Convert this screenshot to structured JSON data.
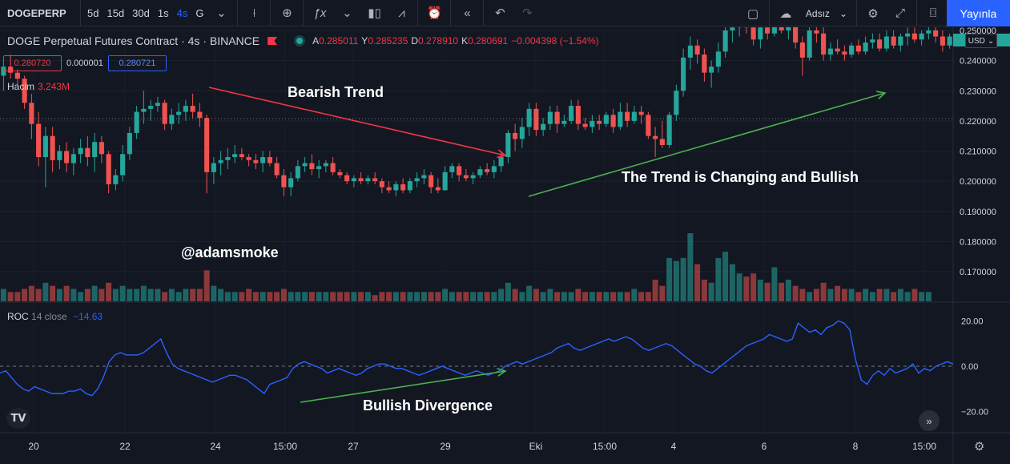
{
  "toolbar": {
    "symbol": "DOGEPERP",
    "intervals": [
      "5d",
      "15d",
      "30d",
      "1s",
      "4s",
      "G"
    ],
    "active_interval": "4s",
    "user": "Adsız",
    "publish_label": "Yayınla"
  },
  "legend": {
    "title": "DOGE Perpetual Futures Contract · 4s · BINANCE",
    "ohlc": [
      {
        "k": "A",
        "v": "0.285011"
      },
      {
        "k": "Y",
        "v": "0.285235"
      },
      {
        "k": "D",
        "v": "0.278910"
      },
      {
        "k": "K",
        "v": "0.280691"
      }
    ],
    "change": "−0.004398 (−1.54%)",
    "bid": "0.280720",
    "spread": "0.000001",
    "ask": "0.280721"
  },
  "volume_legend": {
    "label": "Hacim",
    "value": "3.243M"
  },
  "roc_legend": {
    "label": "ROC",
    "params": "14 close",
    "value": "−14.63"
  },
  "currency_label": "USD",
  "annotations": {
    "bearish": "Bearish Trend",
    "changing": "The Trend is Changing and Bullish",
    "author": "@adamsmoke",
    "divergence": "Bullish Divergence"
  },
  "colors": {
    "up": "#26a69a",
    "down": "#ef5350",
    "roc": "#2962ff",
    "arrow_red": "#f23645",
    "arrow_green": "#4caf50",
    "bg": "#131722"
  },
  "chart_data": {
    "type": "candlestick",
    "price_axis": {
      "ticks": [
        "0.250000",
        "0.240000",
        "0.230000",
        "0.220000",
        "0.210000",
        "0.200000",
        "0.190000",
        "0.180000",
        "0.170000"
      ],
      "range": [
        0.165,
        0.253
      ]
    },
    "roc_axis": {
      "ticks": [
        "20.00",
        "0.00",
        "−20.00"
      ],
      "range": [
        -27,
        25
      ]
    },
    "time_labels": [
      "20",
      "22",
      "24",
      "15:00",
      "27",
      "29",
      "Eki",
      "15:00",
      "4",
      "6",
      "8",
      "15:00"
    ],
    "candles": [
      {
        "o": 0.235,
        "h": 0.24,
        "l": 0.23,
        "c": 0.238
      },
      {
        "o": 0.238,
        "h": 0.242,
        "l": 0.234,
        "c": 0.236
      },
      {
        "o": 0.236,
        "h": 0.237,
        "l": 0.232,
        "c": 0.234
      },
      {
        "o": 0.234,
        "h": 0.235,
        "l": 0.224,
        "c": 0.226
      },
      {
        "o": 0.226,
        "h": 0.229,
        "l": 0.214,
        "c": 0.219
      },
      {
        "o": 0.219,
        "h": 0.223,
        "l": 0.205,
        "c": 0.208
      },
      {
        "o": 0.208,
        "h": 0.218,
        "l": 0.198,
        "c": 0.215
      },
      {
        "o": 0.215,
        "h": 0.218,
        "l": 0.203,
        "c": 0.207
      },
      {
        "o": 0.207,
        "h": 0.212,
        "l": 0.204,
        "c": 0.21
      },
      {
        "o": 0.21,
        "h": 0.213,
        "l": 0.203,
        "c": 0.206
      },
      {
        "o": 0.206,
        "h": 0.211,
        "l": 0.202,
        "c": 0.209
      },
      {
        "o": 0.209,
        "h": 0.214,
        "l": 0.206,
        "c": 0.211
      },
      {
        "o": 0.211,
        "h": 0.215,
        "l": 0.205,
        "c": 0.208
      },
      {
        "o": 0.208,
        "h": 0.216,
        "l": 0.203,
        "c": 0.213
      },
      {
        "o": 0.213,
        "h": 0.215,
        "l": 0.206,
        "c": 0.209
      },
      {
        "o": 0.209,
        "h": 0.21,
        "l": 0.196,
        "c": 0.199
      },
      {
        "o": 0.199,
        "h": 0.204,
        "l": 0.197,
        "c": 0.202
      },
      {
        "o": 0.202,
        "h": 0.212,
        "l": 0.2,
        "c": 0.209
      },
      {
        "o": 0.209,
        "h": 0.218,
        "l": 0.207,
        "c": 0.216
      },
      {
        "o": 0.216,
        "h": 0.225,
        "l": 0.214,
        "c": 0.223
      },
      {
        "o": 0.223,
        "h": 0.23,
        "l": 0.219,
        "c": 0.224
      },
      {
        "o": 0.224,
        "h": 0.227,
        "l": 0.22,
        "c": 0.225
      },
      {
        "o": 0.225,
        "h": 0.228,
        "l": 0.223,
        "c": 0.226
      },
      {
        "o": 0.226,
        "h": 0.227,
        "l": 0.217,
        "c": 0.219
      },
      {
        "o": 0.219,
        "h": 0.224,
        "l": 0.217,
        "c": 0.222
      },
      {
        "o": 0.222,
        "h": 0.226,
        "l": 0.219,
        "c": 0.223
      },
      {
        "o": 0.223,
        "h": 0.227,
        "l": 0.22,
        "c": 0.225
      },
      {
        "o": 0.225,
        "h": 0.229,
        "l": 0.221,
        "c": 0.223
      },
      {
        "o": 0.223,
        "h": 0.226,
        "l": 0.218,
        "c": 0.221
      },
      {
        "o": 0.221,
        "h": 0.222,
        "l": 0.196,
        "c": 0.203
      },
      {
        "o": 0.203,
        "h": 0.208,
        "l": 0.199,
        "c": 0.206
      },
      {
        "o": 0.206,
        "h": 0.21,
        "l": 0.202,
        "c": 0.207
      },
      {
        "o": 0.207,
        "h": 0.211,
        "l": 0.204,
        "c": 0.208
      },
      {
        "o": 0.208,
        "h": 0.212,
        "l": 0.206,
        "c": 0.209
      },
      {
        "o": 0.209,
        "h": 0.211,
        "l": 0.207,
        "c": 0.208
      },
      {
        "o": 0.208,
        "h": 0.209,
        "l": 0.205,
        "c": 0.207
      },
      {
        "o": 0.207,
        "h": 0.209,
        "l": 0.204,
        "c": 0.206
      },
      {
        "o": 0.206,
        "h": 0.21,
        "l": 0.203,
        "c": 0.208
      },
      {
        "o": 0.208,
        "h": 0.21,
        "l": 0.205,
        "c": 0.206
      },
      {
        "o": 0.206,
        "h": 0.208,
        "l": 0.201,
        "c": 0.202
      },
      {
        "o": 0.202,
        "h": 0.204,
        "l": 0.195,
        "c": 0.198
      },
      {
        "o": 0.198,
        "h": 0.203,
        "l": 0.195,
        "c": 0.201
      },
      {
        "o": 0.201,
        "h": 0.207,
        "l": 0.2,
        "c": 0.205
      },
      {
        "o": 0.205,
        "h": 0.208,
        "l": 0.203,
        "c": 0.206
      },
      {
        "o": 0.206,
        "h": 0.209,
        "l": 0.202,
        "c": 0.204
      },
      {
        "o": 0.204,
        "h": 0.207,
        "l": 0.201,
        "c": 0.205
      },
      {
        "o": 0.205,
        "h": 0.207,
        "l": 0.203,
        "c": 0.206
      },
      {
        "o": 0.206,
        "h": 0.208,
        "l": 0.202,
        "c": 0.203
      },
      {
        "o": 0.203,
        "h": 0.204,
        "l": 0.201,
        "c": 0.202
      },
      {
        "o": 0.202,
        "h": 0.203,
        "l": 0.199,
        "c": 0.2
      },
      {
        "o": 0.2,
        "h": 0.202,
        "l": 0.198,
        "c": 0.201
      },
      {
        "o": 0.201,
        "h": 0.203,
        "l": 0.199,
        "c": 0.2
      },
      {
        "o": 0.2,
        "h": 0.202,
        "l": 0.199,
        "c": 0.201
      },
      {
        "o": 0.201,
        "h": 0.203,
        "l": 0.199,
        "c": 0.2
      },
      {
        "o": 0.2,
        "h": 0.201,
        "l": 0.196,
        "c": 0.198
      },
      {
        "o": 0.198,
        "h": 0.2,
        "l": 0.196,
        "c": 0.197
      },
      {
        "o": 0.197,
        "h": 0.2,
        "l": 0.195,
        "c": 0.199
      },
      {
        "o": 0.199,
        "h": 0.201,
        "l": 0.196,
        "c": 0.197
      },
      {
        "o": 0.197,
        "h": 0.201,
        "l": 0.196,
        "c": 0.2
      },
      {
        "o": 0.2,
        "h": 0.203,
        "l": 0.198,
        "c": 0.201
      },
      {
        "o": 0.201,
        "h": 0.204,
        "l": 0.199,
        "c": 0.202
      },
      {
        "o": 0.202,
        "h": 0.203,
        "l": 0.196,
        "c": 0.198
      },
      {
        "o": 0.198,
        "h": 0.201,
        "l": 0.196,
        "c": 0.197
      },
      {
        "o": 0.197,
        "h": 0.205,
        "l": 0.197,
        "c": 0.203
      },
      {
        "o": 0.203,
        "h": 0.206,
        "l": 0.201,
        "c": 0.205
      },
      {
        "o": 0.205,
        "h": 0.206,
        "l": 0.2,
        "c": 0.202
      },
      {
        "o": 0.202,
        "h": 0.204,
        "l": 0.2,
        "c": 0.201
      },
      {
        "o": 0.201,
        "h": 0.203,
        "l": 0.199,
        "c": 0.202
      },
      {
        "o": 0.202,
        "h": 0.205,
        "l": 0.201,
        "c": 0.204
      },
      {
        "o": 0.204,
        "h": 0.206,
        "l": 0.202,
        "c": 0.203
      },
      {
        "o": 0.203,
        "h": 0.207,
        "l": 0.201,
        "c": 0.205
      },
      {
        "o": 0.205,
        "h": 0.21,
        "l": 0.203,
        "c": 0.208
      },
      {
        "o": 0.208,
        "h": 0.217,
        "l": 0.206,
        "c": 0.216
      },
      {
        "o": 0.216,
        "h": 0.219,
        "l": 0.21,
        "c": 0.214
      },
      {
        "o": 0.214,
        "h": 0.221,
        "l": 0.211,
        "c": 0.218
      },
      {
        "o": 0.218,
        "h": 0.226,
        "l": 0.215,
        "c": 0.224
      },
      {
        "o": 0.224,
        "h": 0.226,
        "l": 0.215,
        "c": 0.217
      },
      {
        "o": 0.217,
        "h": 0.221,
        "l": 0.215,
        "c": 0.219
      },
      {
        "o": 0.219,
        "h": 0.225,
        "l": 0.217,
        "c": 0.223
      },
      {
        "o": 0.223,
        "h": 0.225,
        "l": 0.216,
        "c": 0.219
      },
      {
        "o": 0.219,
        "h": 0.222,
        "l": 0.218,
        "c": 0.22
      },
      {
        "o": 0.22,
        "h": 0.227,
        "l": 0.219,
        "c": 0.225
      },
      {
        "o": 0.225,
        "h": 0.227,
        "l": 0.217,
        "c": 0.219
      },
      {
        "o": 0.219,
        "h": 0.221,
        "l": 0.217,
        "c": 0.218
      },
      {
        "o": 0.218,
        "h": 0.222,
        "l": 0.216,
        "c": 0.22
      },
      {
        "o": 0.22,
        "h": 0.222,
        "l": 0.217,
        "c": 0.219
      },
      {
        "o": 0.219,
        "h": 0.223,
        "l": 0.218,
        "c": 0.222
      },
      {
        "o": 0.222,
        "h": 0.224,
        "l": 0.216,
        "c": 0.218
      },
      {
        "o": 0.218,
        "h": 0.226,
        "l": 0.217,
        "c": 0.223
      },
      {
        "o": 0.223,
        "h": 0.226,
        "l": 0.218,
        "c": 0.22
      },
      {
        "o": 0.22,
        "h": 0.225,
        "l": 0.219,
        "c": 0.223
      },
      {
        "o": 0.223,
        "h": 0.225,
        "l": 0.219,
        "c": 0.222
      },
      {
        "o": 0.222,
        "h": 0.223,
        "l": 0.214,
        "c": 0.215
      },
      {
        "o": 0.215,
        "h": 0.218,
        "l": 0.208,
        "c": 0.214
      },
      {
        "o": 0.214,
        "h": 0.22,
        "l": 0.211,
        "c": 0.212
      },
      {
        "o": 0.212,
        "h": 0.223,
        "l": 0.211,
        "c": 0.222
      },
      {
        "o": 0.222,
        "h": 0.232,
        "l": 0.22,
        "c": 0.23
      },
      {
        "o": 0.23,
        "h": 0.244,
        "l": 0.228,
        "c": 0.241
      },
      {
        "o": 0.241,
        "h": 0.248,
        "l": 0.237,
        "c": 0.245
      },
      {
        "o": 0.245,
        "h": 0.247,
        "l": 0.239,
        "c": 0.242
      },
      {
        "o": 0.242,
        "h": 0.244,
        "l": 0.233,
        "c": 0.236
      },
      {
        "o": 0.236,
        "h": 0.24,
        "l": 0.231,
        "c": 0.238
      },
      {
        "o": 0.238,
        "h": 0.246,
        "l": 0.236,
        "c": 0.243
      },
      {
        "o": 0.243,
        "h": 0.252,
        "l": 0.241,
        "c": 0.25
      },
      {
        "o": 0.25,
        "h": 0.253,
        "l": 0.246,
        "c": 0.251
      },
      {
        "o": 0.251,
        "h": 0.253,
        "l": 0.248,
        "c": 0.252
      },
      {
        "o": 0.252,
        "h": 0.253,
        "l": 0.249,
        "c": 0.251
      },
      {
        "o": 0.251,
        "h": 0.253,
        "l": 0.245,
        "c": 0.247
      },
      {
        "o": 0.247,
        "h": 0.253,
        "l": 0.244,
        "c": 0.251
      },
      {
        "o": 0.251,
        "h": 0.253,
        "l": 0.247,
        "c": 0.249
      },
      {
        "o": 0.249,
        "h": 0.253,
        "l": 0.248,
        "c": 0.252
      },
      {
        "o": 0.252,
        "h": 0.253,
        "l": 0.249,
        "c": 0.25
      },
      {
        "o": 0.25,
        "h": 0.253,
        "l": 0.247,
        "c": 0.252
      },
      {
        "o": 0.252,
        "h": 0.253,
        "l": 0.244,
        "c": 0.246
      },
      {
        "o": 0.246,
        "h": 0.248,
        "l": 0.235,
        "c": 0.241
      },
      {
        "o": 0.241,
        "h": 0.252,
        "l": 0.24,
        "c": 0.25
      },
      {
        "o": 0.25,
        "h": 0.253,
        "l": 0.246,
        "c": 0.249
      },
      {
        "o": 0.249,
        "h": 0.252,
        "l": 0.24,
        "c": 0.242
      },
      {
        "o": 0.242,
        "h": 0.246,
        "l": 0.24,
        "c": 0.244
      },
      {
        "o": 0.244,
        "h": 0.247,
        "l": 0.242,
        "c": 0.243
      },
      {
        "o": 0.243,
        "h": 0.245,
        "l": 0.24,
        "c": 0.242
      },
      {
        "o": 0.242,
        "h": 0.246,
        "l": 0.241,
        "c": 0.245
      },
      {
        "o": 0.245,
        "h": 0.247,
        "l": 0.242,
        "c": 0.243
      },
      {
        "o": 0.243,
        "h": 0.248,
        "l": 0.242,
        "c": 0.246
      },
      {
        "o": 0.246,
        "h": 0.249,
        "l": 0.244,
        "c": 0.247
      },
      {
        "o": 0.247,
        "h": 0.249,
        "l": 0.243,
        "c": 0.244
      },
      {
        "o": 0.244,
        "h": 0.25,
        "l": 0.243,
        "c": 0.248
      },
      {
        "o": 0.248,
        "h": 0.25,
        "l": 0.244,
        "c": 0.245
      },
      {
        "o": 0.245,
        "h": 0.249,
        "l": 0.243,
        "c": 0.248
      },
      {
        "o": 0.248,
        "h": 0.251,
        "l": 0.245,
        "c": 0.249
      },
      {
        "o": 0.249,
        "h": 0.251,
        "l": 0.246,
        "c": 0.247
      },
      {
        "o": 0.247,
        "h": 0.25,
        "l": 0.245,
        "c": 0.249
      },
      {
        "o": 0.249,
        "h": 0.252,
        "l": 0.247,
        "c": 0.25
      },
      {
        "o": 0.25,
        "h": 0.251,
        "l": 0.246,
        "c": 0.248
      },
      {
        "o": 0.248,
        "h": 0.25,
        "l": 0.243,
        "c": 0.245
      },
      {
        "o": 0.245,
        "h": 0.249,
        "l": 0.244,
        "c": 0.248
      }
    ],
    "volume": [
      4,
      3,
      3,
      4,
      5,
      4,
      6,
      5,
      4,
      5,
      4,
      3,
      4,
      5,
      4,
      6,
      4,
      5,
      4,
      4,
      5,
      4,
      4,
      3,
      4,
      3,
      4,
      4,
      4,
      10,
      5,
      4,
      3,
      3,
      3,
      4,
      3,
      3,
      3,
      3,
      4,
      3,
      3,
      3,
      3,
      3,
      3,
      3,
      3,
      3,
      3,
      3,
      3,
      2,
      3,
      3,
      3,
      3,
      3,
      3,
      3,
      3,
      3,
      4,
      3,
      3,
      3,
      3,
      3,
      3,
      3,
      4,
      6,
      4,
      3,
      5,
      4,
      3,
      4,
      3,
      3,
      3,
      4,
      3,
      3,
      3,
      3,
      3,
      3,
      3,
      4,
      3,
      3,
      7,
      5,
      14,
      13,
      14,
      22,
      12,
      7,
      6,
      14,
      16,
      12,
      9,
      8,
      9,
      7,
      6,
      11,
      6,
      7,
      5,
      4,
      3,
      4,
      6,
      4,
      5,
      4,
      4,
      3,
      4,
      3,
      4,
      4,
      3,
      4,
      3,
      4,
      3,
      3
    ],
    "roc": [
      -3,
      -2,
      -5,
      -8,
      -10,
      -11,
      -9,
      -10,
      -11,
      -12,
      -12,
      -12,
      -11,
      -11,
      -10,
      -12,
      -13,
      -10,
      -5,
      2,
      5,
      6,
      5,
      5,
      5,
      6,
      8,
      10,
      12,
      6,
      1,
      -1,
      -2,
      -3,
      -4,
      -5,
      -6,
      -7,
      -6,
      -5,
      -4,
      -4,
      -5,
      -6,
      -8,
      -10,
      -12,
      -8,
      -7,
      -6,
      -5,
      -1,
      1,
      2,
      1,
      0,
      -1,
      -3,
      -2,
      -1,
      -2,
      -3,
      -4,
      -3,
      -1,
      0,
      1,
      1,
      0,
      -1,
      -1,
      -2,
      -3,
      -4,
      -3,
      -2,
      -1,
      0,
      -1,
      -2,
      -3,
      -4,
      -3,
      -2,
      -3,
      -4,
      -3,
      -2,
      0,
      1,
      2,
      1,
      2,
      3,
      4,
      5,
      6,
      8,
      9,
      10,
      8,
      7,
      8,
      9,
      10,
      11,
      12,
      11,
      12,
      13,
      12,
      10,
      8,
      7,
      8,
      9,
      10,
      9,
      7,
      5,
      3,
      1,
      0,
      -2,
      -3,
      -1,
      1,
      3,
      5,
      7,
      9,
      10,
      11,
      12,
      14,
      13,
      12,
      11,
      12,
      19,
      17,
      15,
      16,
      14,
      17,
      18,
      20,
      19,
      16,
      3,
      -6,
      -8,
      -4,
      -2,
      -4,
      -1,
      -3,
      -2,
      -1,
      1,
      -3,
      -1,
      -2,
      0,
      1,
      2,
      1
    ],
    "series_note": ""
  }
}
